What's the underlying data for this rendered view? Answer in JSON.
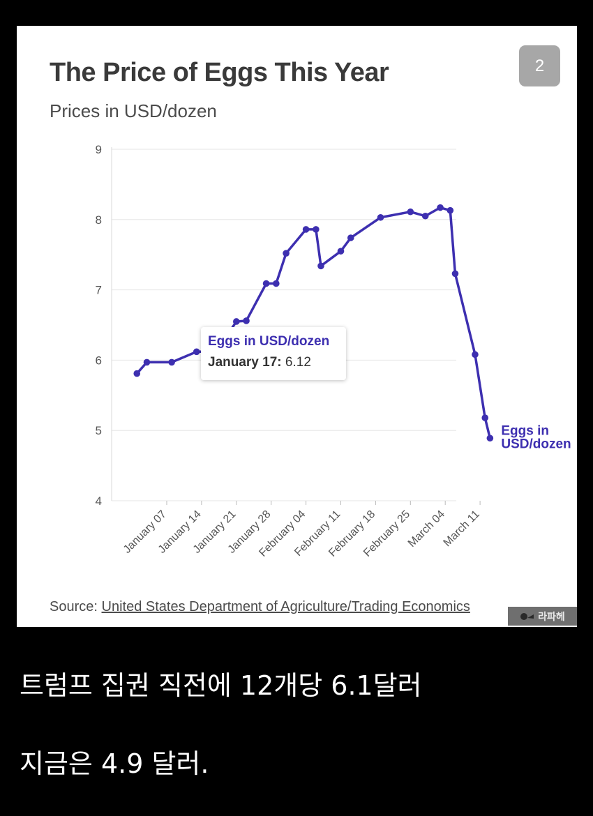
{
  "card": {
    "title": "The Price of Eggs This Year",
    "subtitle": "Prices in USD/dozen",
    "badge": "2",
    "source_prefix": "Source:",
    "source_link": "United States Department of Agriculture/Trading Economics",
    "watermark": "라파헤",
    "watermark_icon": "watermark-logo-icon"
  },
  "tooltip": {
    "series": "Eggs in USD/dozen",
    "date": "January 17:",
    "value": "6.12"
  },
  "captions": {
    "line1": "트럼프 집권 직전에 12개당 6.1달러",
    "line2": "지금은 4.9 달러."
  },
  "colors": {
    "line": "#3d2fb0",
    "background": "#000000",
    "card": "#ffffff"
  },
  "chart_data": {
    "type": "line",
    "title": "The Price of Eggs This Year",
    "subtitle": "Prices in USD/dozen",
    "series": [
      {
        "name": "Eggs in USD/dozen",
        "x": [
          "2025-01-01",
          "2025-01-03",
          "2025-01-08",
          "2025-01-13",
          "2025-01-17",
          "2025-01-21",
          "2025-01-23",
          "2025-01-27",
          "2025-01-29",
          "2025-01-31",
          "2025-02-04",
          "2025-02-06",
          "2025-02-07",
          "2025-02-11",
          "2025-02-13",
          "2025-02-19",
          "2025-02-25",
          "2025-02-28",
          "2025-03-03",
          "2025-03-05",
          "2025-03-06",
          "2025-03-10",
          "2025-03-12",
          "2025-03-13"
        ],
        "y": [
          5.81,
          5.97,
          5.97,
          6.12,
          6.12,
          6.55,
          6.56,
          7.09,
          7.09,
          7.52,
          7.86,
          7.86,
          7.34,
          7.55,
          7.74,
          8.03,
          8.11,
          8.05,
          8.17,
          8.13,
          7.23,
          6.08,
          5.18,
          4.89
        ]
      }
    ],
    "x_tick_labels": [
      "January 07",
      "January 14",
      "January 21",
      "January 28",
      "February 04",
      "February 11",
      "February 18",
      "February 25",
      "March 04",
      "March 11"
    ],
    "y_ticks": [
      4,
      5,
      6,
      7,
      8,
      9
    ],
    "ylim": [
      4,
      9
    ],
    "grid": true,
    "end_label": "Eggs in USD/dozen",
    "highlight": {
      "x": "2025-01-17",
      "y": 6.12
    }
  }
}
